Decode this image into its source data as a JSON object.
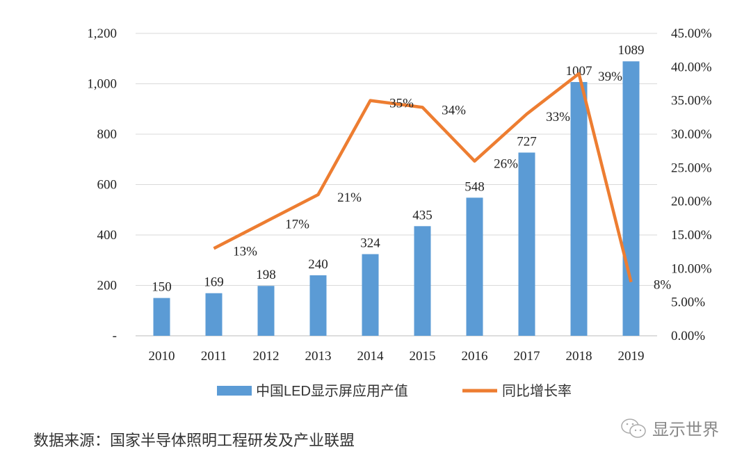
{
  "chart_data": {
    "type": "bar+line",
    "categories": [
      "2010",
      "2011",
      "2012",
      "2013",
      "2014",
      "2015",
      "2016",
      "2017",
      "2018",
      "2019"
    ],
    "series": [
      {
        "name": "中国LED显示屏应用产值",
        "type": "bar",
        "axis": "left",
        "color": "#5B9BD5",
        "values": [
          150,
          169,
          198,
          240,
          324,
          435,
          548,
          727,
          1007,
          1089
        ],
        "labels": [
          "150",
          "169",
          "198",
          "240",
          "324",
          "435",
          "548",
          "727",
          "1007",
          "1089"
        ]
      },
      {
        "name": "同比增长率",
        "type": "line",
        "axis": "right",
        "color": "#ED7D31",
        "values": [
          null,
          13,
          17,
          21,
          35,
          34,
          26,
          33,
          39,
          8
        ],
        "labels": [
          "",
          "13%",
          "17%",
          "21%",
          "35%",
          "34%",
          "26%",
          "33%",
          "39%",
          "8%"
        ]
      }
    ],
    "left_axis": {
      "ylim": [
        0,
        1200
      ],
      "ticks": [
        "-",
        "200",
        "400",
        "600",
        "800",
        "1,000",
        "1,200"
      ]
    },
    "right_axis": {
      "ylim": [
        0,
        45
      ],
      "ticks": [
        "0.00%",
        "5.00%",
        "10.00%",
        "15.00%",
        "20.00%",
        "25.00%",
        "30.00%",
        "35.00%",
        "40.00%",
        "45.00%"
      ]
    },
    "grid": true,
    "legend": "bottom"
  },
  "source": "数据来源：国家半导体照明工程研发及产业联盟",
  "logo": {
    "text": "显示世界",
    "icon": "wechat-icon"
  }
}
